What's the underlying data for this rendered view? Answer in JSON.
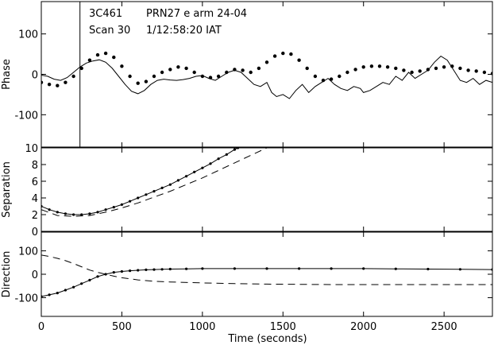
{
  "header": {
    "source": "3C461",
    "satellite": "PRN27  e arm 24-04",
    "scan": "Scan 30",
    "time": "1/12:58:20 IAT"
  },
  "chart_data": {
    "type": "line",
    "x_range": [
      0,
      2800
    ],
    "x_ticks": [
      0,
      500,
      1000,
      1500,
      2000,
      2500
    ],
    "xlabel": "Time (seconds)",
    "marker_line_x": 240,
    "panels": [
      {
        "id": "phase",
        "ylabel": "Phase",
        "ylim": [
          -180,
          180
        ],
        "y_ticks": [
          -100,
          0,
          100
        ],
        "series": [
          {
            "style": "solid",
            "x": [
              0,
              40,
              80,
              120,
              160,
              200,
              240,
              280,
              320,
              360,
              400,
              440,
              480,
              520,
              560,
              600,
              640,
              680,
              720,
              760,
              800,
              840,
              880,
              920,
              960,
              1000,
              1040,
              1080,
              1120,
              1160,
              1200,
              1240,
              1280,
              1320,
              1360,
              1400,
              1430,
              1460,
              1500,
              1540,
              1580,
              1620,
              1660,
              1700,
              1740,
              1780,
              1820,
              1860,
              1900,
              1940,
              1980,
              2000,
              2040,
              2080,
              2120,
              2160,
              2200,
              2240,
              2280,
              2320,
              2360,
              2400,
              2440,
              2480,
              2520,
              2560,
              2600,
              2640,
              2680,
              2720,
              2760,
              2800
            ],
            "y": [
              -2,
              -5,
              -12,
              -15,
              -8,
              5,
              18,
              28,
              33,
              36,
              30,
              15,
              -5,
              -25,
              -42,
              -48,
              -40,
              -25,
              -15,
              -12,
              -14,
              -15,
              -13,
              -10,
              -5,
              -3,
              -10,
              -15,
              -5,
              5,
              10,
              5,
              -10,
              -25,
              -30,
              -20,
              -45,
              -55,
              -50,
              -60,
              -40,
              -25,
              -45,
              -30,
              -20,
              -10,
              -25,
              -35,
              -40,
              -30,
              -35,
              -45,
              -40,
              -30,
              -20,
              -25,
              -5,
              -15,
              5,
              -10,
              0,
              10,
              30,
              45,
              35,
              10,
              -15,
              -20,
              -10,
              -25,
              -15,
              -20
            ]
          },
          {
            "style": "dots",
            "x": [
              0,
              50,
              100,
              150,
              200,
              250,
              300,
              350,
              400,
              450,
              500,
              550,
              600,
              650,
              700,
              750,
              800,
              850,
              900,
              950,
              1000,
              1050,
              1100,
              1150,
              1200,
              1250,
              1300,
              1350,
              1400,
              1450,
              1500,
              1550,
              1600,
              1650,
              1700,
              1750,
              1800,
              1850,
              1900,
              1950,
              2000,
              2050,
              2100,
              2150,
              2200,
              2250,
              2300,
              2350,
              2400,
              2450,
              2500,
              2550,
              2600,
              2650,
              2700,
              2750,
              2800
            ],
            "y": [
              -20,
              -25,
              -28,
              -20,
              -5,
              15,
              35,
              48,
              52,
              42,
              20,
              -5,
              -22,
              -18,
              -5,
              5,
              12,
              18,
              15,
              5,
              -5,
              -8,
              -5,
              5,
              12,
              10,
              5,
              15,
              30,
              45,
              52,
              50,
              35,
              15,
              -5,
              -15,
              -12,
              -5,
              5,
              12,
              18,
              20,
              20,
              18,
              15,
              10,
              5,
              8,
              12,
              15,
              18,
              20,
              15,
              10,
              8,
              5,
              2
            ]
          }
        ]
      },
      {
        "id": "separation",
        "ylabel": "Separation",
        "ylim": [
          0,
          10
        ],
        "y_ticks": [
          0,
          2,
          4,
          6,
          8,
          10
        ],
        "series": [
          {
            "style": "solid-dots",
            "x": [
              0,
              50,
              100,
              150,
              200,
              250,
              300,
              350,
              400,
              450,
              500,
              550,
              600,
              650,
              700,
              750,
              800,
              850,
              900,
              950,
              1000,
              1050,
              1100,
              1150,
              1200,
              1220
            ],
            "y": [
              3.0,
              2.6,
              2.3,
              2.1,
              2.0,
              2.0,
              2.1,
              2.3,
              2.6,
              2.9,
              3.2,
              3.6,
              4.0,
              4.4,
              4.8,
              5.2,
              5.6,
              6.1,
              6.6,
              7.1,
              7.6,
              8.1,
              8.7,
              9.2,
              9.8,
              10.0
            ]
          },
          {
            "style": "dashed",
            "x": [
              0,
              100,
              200,
              300,
              400,
              500,
              600,
              700,
              800,
              900,
              1000,
              1100,
              1200,
              1300,
              1400
            ],
            "y": [
              2.6,
              1.9,
              1.8,
              1.9,
              2.3,
              2.8,
              3.4,
              4.1,
              4.8,
              5.6,
              6.4,
              7.3,
              8.2,
              9.1,
              10.0
            ]
          }
        ]
      },
      {
        "id": "direction",
        "ylabel": "Direction",
        "ylim": [
          -180,
          180
        ],
        "y_ticks": [
          -100,
          0,
          100
        ],
        "series": [
          {
            "style": "solid-dots",
            "x": [
              0,
              50,
              100,
              150,
              200,
              250,
              300,
              350,
              400,
              450,
              500,
              550,
              600,
              650,
              700,
              750,
              800,
              900,
              1000,
              1200,
              1400,
              1600,
              1800,
              2000,
              2200,
              2400,
              2600,
              2800
            ],
            "y": [
              -95,
              -88,
              -80,
              -68,
              -55,
              -40,
              -25,
              -10,
              0,
              8,
              12,
              15,
              17,
              19,
              20,
              21,
              22,
              23,
              24,
              24,
              24,
              24,
              24,
              24,
              23,
              22,
              21,
              20
            ]
          },
          {
            "style": "dashed",
            "x": [
              0,
              50,
              100,
              150,
              200,
              250,
              300,
              350,
              400,
              450,
              500,
              600,
              700,
              800,
              1000,
              1200,
              1400,
              1600,
              1800,
              2000,
              2200,
              2400,
              2600,
              2800
            ],
            "y": [
              82,
              76,
              68,
              58,
              46,
              32,
              18,
              8,
              0,
              -8,
              -15,
              -24,
              -30,
              -33,
              -37,
              -40,
              -42,
              -43,
              -44,
              -44,
              -44,
              -44,
              -44,
              -44
            ]
          }
        ]
      }
    ]
  }
}
